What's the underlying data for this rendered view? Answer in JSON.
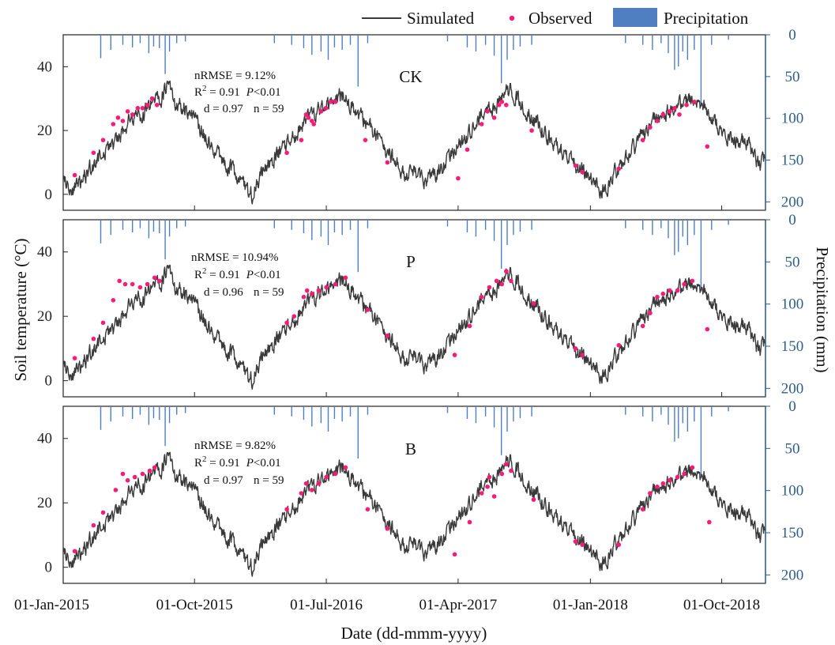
{
  "chart_data": {
    "type": "line",
    "xlabel": "Date (dd-mmm-yyyy)",
    "ylabel_left": "Soil temperature (°C)",
    "ylabel_right": "Precipitation (mm)",
    "x_ticks": [
      "01-Jan-2015",
      "01-Oct-2015",
      "01-Jul-2016",
      "01-Apr-2017",
      "01-Jan-2018",
      "01-Oct-2018"
    ],
    "xlim": [
      "2015-01-01",
      "2018-12-31"
    ],
    "ylim_left": [
      -5,
      50
    ],
    "left_ticks": [
      0,
      20,
      40
    ],
    "ylim_right": [
      210,
      0
    ],
    "right_ticks": [
      0,
      50,
      100,
      150,
      200
    ],
    "right_axis_reversed": true,
    "legend": {
      "position": "top-right",
      "entries": [
        "Simulated",
        "Observed",
        "Precipitation"
      ]
    },
    "colors": {
      "simulated": "#3a3a3a",
      "observed": "#ff1a75",
      "precipitation": "#4f7fc0",
      "right_axis": "#2e5c8a"
    },
    "precipitation": {
      "name": "Precipitation",
      "unit": "mm",
      "events": [
        [
          "2015-03-20",
          28
        ],
        [
          "2015-04-10",
          18
        ],
        [
          "2015-05-05",
          12
        ],
        [
          "2015-05-25",
          15
        ],
        [
          "2015-06-10",
          10
        ],
        [
          "2015-06-28",
          22
        ],
        [
          "2015-07-08",
          14
        ],
        [
          "2015-07-20",
          16
        ],
        [
          "2015-08-01",
          47
        ],
        [
          "2015-08-10",
          20
        ],
        [
          "2015-08-25",
          10
        ],
        [
          "2015-09-12",
          8
        ],
        [
          "2016-03-15",
          10
        ],
        [
          "2016-04-20",
          12
        ],
        [
          "2016-05-15",
          16
        ],
        [
          "2016-06-01",
          24
        ],
        [
          "2016-06-20",
          20
        ],
        [
          "2016-07-05",
          30
        ],
        [
          "2016-07-18",
          15
        ],
        [
          "2016-08-03",
          18
        ],
        [
          "2016-08-20",
          12
        ],
        [
          "2016-09-05",
          62
        ],
        [
          "2016-09-25",
          10
        ],
        [
          "2017-03-10",
          8
        ],
        [
          "2017-04-20",
          15
        ],
        [
          "2017-05-08",
          20
        ],
        [
          "2017-05-28",
          12
        ],
        [
          "2017-06-15",
          25
        ],
        [
          "2017-06-30",
          58
        ],
        [
          "2017-07-12",
          30
        ],
        [
          "2017-07-25",
          18
        ],
        [
          "2017-08-08",
          14
        ],
        [
          "2017-09-01",
          12
        ],
        [
          "2018-03-15",
          10
        ],
        [
          "2018-04-20",
          12
        ],
        [
          "2018-05-10",
          18
        ],
        [
          "2018-05-28",
          10
        ],
        [
          "2018-06-12",
          22
        ],
        [
          "2018-06-25",
          42
        ],
        [
          "2018-07-03",
          38
        ],
        [
          "2018-07-12",
          20
        ],
        [
          "2018-07-22",
          30
        ],
        [
          "2018-08-05",
          18
        ],
        [
          "2018-08-19",
          85
        ],
        [
          "2018-09-10",
          12
        ],
        [
          "2018-10-15",
          6
        ]
      ]
    },
    "simulated_profile": {
      "name": "Simulated",
      "keypoints": [
        [
          "2015-01-01",
          6
        ],
        [
          "2015-01-20",
          1
        ],
        [
          "2015-02-20",
          7
        ],
        [
          "2015-03-20",
          12
        ],
        [
          "2015-04-20",
          17
        ],
        [
          "2015-05-20",
          23
        ],
        [
          "2015-06-20",
          26
        ],
        [
          "2015-07-20",
          30
        ],
        [
          "2015-08-05",
          33
        ],
        [
          "2015-08-20",
          29
        ],
        [
          "2015-09-20",
          26
        ],
        [
          "2015-10-20",
          19
        ],
        [
          "2015-11-20",
          12
        ],
        [
          "2015-12-20",
          7
        ],
        [
          "2016-01-15",
          2
        ],
        [
          "2016-01-28",
          0
        ],
        [
          "2016-02-15",
          6
        ],
        [
          "2016-03-20",
          12
        ],
        [
          "2016-04-20",
          17
        ],
        [
          "2016-05-20",
          23
        ],
        [
          "2016-06-20",
          27
        ],
        [
          "2016-07-20",
          29
        ],
        [
          "2016-08-05",
          31
        ],
        [
          "2016-08-25",
          27
        ],
        [
          "2016-09-20",
          22
        ],
        [
          "2016-10-20",
          17
        ],
        [
          "2016-11-20",
          10
        ],
        [
          "2016-12-20",
          6
        ],
        [
          "2017-01-25",
          5
        ],
        [
          "2017-02-20",
          7
        ],
        [
          "2017-03-20",
          13
        ],
        [
          "2017-04-20",
          18
        ],
        [
          "2017-05-20",
          24
        ],
        [
          "2017-06-20",
          28
        ],
        [
          "2017-07-10",
          33
        ],
        [
          "2017-07-30",
          31
        ],
        [
          "2017-08-20",
          26
        ],
        [
          "2017-09-20",
          21
        ],
        [
          "2017-10-20",
          15
        ],
        [
          "2017-11-20",
          10
        ],
        [
          "2017-12-20",
          7
        ],
        [
          "2018-01-20",
          2
        ],
        [
          "2018-02-01",
          0
        ],
        [
          "2018-02-20",
          6
        ],
        [
          "2018-03-20",
          12
        ],
        [
          "2018-04-20",
          19
        ],
        [
          "2018-05-20",
          24
        ],
        [
          "2018-06-20",
          27
        ],
        [
          "2018-07-20",
          29
        ],
        [
          "2018-08-05",
          30
        ],
        [
          "2018-08-25",
          28
        ],
        [
          "2018-09-20",
          22
        ],
        [
          "2018-10-20",
          17
        ],
        [
          "2018-11-20",
          16
        ],
        [
          "2018-12-20",
          9
        ],
        [
          "2018-12-31",
          11
        ]
      ]
    },
    "panels": [
      {
        "label": "CK",
        "stats": {
          "nrmse": "nRMSE = 9.12%",
          "r2_prefix": "R",
          "r2_sup": "2",
          "r2_value": " = 0.91",
          "p_letter": "P",
          "p_value": "<0.01",
          "d": "d = 0.97",
          "n": "n = 59"
        },
        "observed": [
          [
            "2015-01-25",
            6
          ],
          [
            "2015-03-05",
            13
          ],
          [
            "2015-03-25",
            17
          ],
          [
            "2015-04-15",
            22
          ],
          [
            "2015-04-25",
            24
          ],
          [
            "2015-05-05",
            23
          ],
          [
            "2015-05-15",
            26
          ],
          [
            "2015-05-25",
            25
          ],
          [
            "2015-06-05",
            27
          ],
          [
            "2015-06-15",
            27
          ],
          [
            "2015-06-25",
            28
          ],
          [
            "2015-07-05",
            30
          ],
          [
            "2015-07-15",
            28
          ],
          [
            "2016-04-10",
            13
          ],
          [
            "2016-05-10",
            17
          ],
          [
            "2016-05-20",
            25
          ],
          [
            "2016-05-25",
            24
          ],
          [
            "2016-06-01",
            23
          ],
          [
            "2016-06-05",
            22
          ],
          [
            "2016-06-20",
            26
          ],
          [
            "2016-06-30",
            27
          ],
          [
            "2016-07-10",
            29
          ],
          [
            "2016-07-20",
            29
          ],
          [
            "2016-09-20",
            17
          ],
          [
            "2016-11-05",
            10
          ],
          [
            "2017-04-01",
            5
          ],
          [
            "2017-04-20",
            14
          ],
          [
            "2017-05-20",
            22
          ],
          [
            "2017-06-01",
            26
          ],
          [
            "2017-06-15",
            24
          ],
          [
            "2017-06-25",
            28
          ],
          [
            "2017-07-01",
            29
          ],
          [
            "2017-07-10",
            28
          ],
          [
            "2017-09-01",
            20
          ],
          [
            "2017-12-01",
            9
          ],
          [
            "2017-12-15",
            7
          ],
          [
            "2018-03-01",
            8
          ],
          [
            "2018-04-20",
            17
          ],
          [
            "2018-05-05",
            21
          ],
          [
            "2018-05-20",
            23
          ],
          [
            "2018-06-01",
            25
          ],
          [
            "2018-06-15",
            26
          ],
          [
            "2018-06-25",
            27
          ],
          [
            "2018-07-05",
            25
          ],
          [
            "2018-07-20",
            28
          ],
          [
            "2018-08-05",
            29
          ],
          [
            "2018-09-01",
            15
          ]
        ]
      },
      {
        "label": "P",
        "stats": {
          "nrmse": "nRMSE = 10.94%",
          "r2_prefix": "R",
          "r2_sup": "2",
          "r2_value": " = 0.91",
          "p_letter": "P",
          "p_value": "<0.01",
          "d": "d = 0.96",
          "n": "n = 59"
        },
        "observed": [
          [
            "2015-01-25",
            7
          ],
          [
            "2015-03-05",
            13
          ],
          [
            "2015-03-25",
            18
          ],
          [
            "2015-04-15",
            25
          ],
          [
            "2015-04-28",
            31
          ],
          [
            "2015-05-10",
            30
          ],
          [
            "2015-05-25",
            30
          ],
          [
            "2015-06-10",
            29
          ],
          [
            "2015-06-25",
            30
          ],
          [
            "2015-07-10",
            32
          ],
          [
            "2015-07-20",
            31
          ],
          [
            "2016-04-10",
            18
          ],
          [
            "2016-04-25",
            20
          ],
          [
            "2016-05-15",
            26
          ],
          [
            "2016-05-22",
            28
          ],
          [
            "2016-06-01",
            27
          ],
          [
            "2016-06-15",
            28
          ],
          [
            "2016-07-01",
            29
          ],
          [
            "2016-07-20",
            30
          ],
          [
            "2016-08-10",
            32
          ],
          [
            "2016-09-25",
            22
          ],
          [
            "2016-11-05",
            14
          ],
          [
            "2017-03-25",
            8
          ],
          [
            "2017-04-25",
            17
          ],
          [
            "2017-05-20",
            26
          ],
          [
            "2017-06-05",
            29
          ],
          [
            "2017-06-20",
            31
          ],
          [
            "2017-07-01",
            30
          ],
          [
            "2017-07-10",
            34
          ],
          [
            "2017-07-20",
            31
          ],
          [
            "2017-09-05",
            24
          ],
          [
            "2017-12-01",
            10
          ],
          [
            "2017-12-15",
            8
          ],
          [
            "2018-03-01",
            11
          ],
          [
            "2018-04-20",
            17
          ],
          [
            "2018-05-05",
            21
          ],
          [
            "2018-05-20",
            26
          ],
          [
            "2018-06-01",
            27
          ],
          [
            "2018-06-15",
            28
          ],
          [
            "2018-07-01",
            28
          ],
          [
            "2018-07-15",
            30
          ],
          [
            "2018-08-01",
            31
          ],
          [
            "2018-09-01",
            16
          ]
        ]
      },
      {
        "label": "B",
        "stats": {
          "nrmse": "nRMSE = 9.82%",
          "r2_prefix": "R",
          "r2_sup": "2",
          "r2_value": " = 0.91",
          "p_letter": "P",
          "p_value": "<0.01",
          "d": "d = 0.97",
          "n": "n = 59"
        },
        "observed": [
          [
            "2015-01-25",
            5
          ],
          [
            "2015-03-05",
            13
          ],
          [
            "2015-03-25",
            17
          ],
          [
            "2015-04-20",
            24
          ],
          [
            "2015-05-05",
            29
          ],
          [
            "2015-05-15",
            27
          ],
          [
            "2015-05-30",
            28
          ],
          [
            "2015-06-15",
            29
          ],
          [
            "2015-06-30",
            30
          ],
          [
            "2015-07-10",
            31
          ],
          [
            "2016-04-10",
            18
          ],
          [
            "2016-05-10",
            23
          ],
          [
            "2016-05-20",
            26
          ],
          [
            "2016-06-01",
            24
          ],
          [
            "2016-06-15",
            26
          ],
          [
            "2016-07-01",
            28
          ],
          [
            "2016-07-20",
            29
          ],
          [
            "2016-08-10",
            31
          ],
          [
            "2016-09-25",
            18
          ],
          [
            "2016-11-05",
            12
          ],
          [
            "2017-03-25",
            4
          ],
          [
            "2017-04-25",
            14
          ],
          [
            "2017-05-20",
            23
          ],
          [
            "2017-06-01",
            25
          ],
          [
            "2017-06-05",
            28
          ],
          [
            "2017-06-15",
            22
          ],
          [
            "2017-07-01",
            29
          ],
          [
            "2017-07-10",
            32
          ],
          [
            "2017-07-20",
            30
          ],
          [
            "2017-09-05",
            21
          ],
          [
            "2017-12-01",
            8
          ],
          [
            "2017-12-15",
            7
          ],
          [
            "2018-03-01",
            7
          ],
          [
            "2018-04-20",
            18
          ],
          [
            "2018-05-05",
            23
          ],
          [
            "2018-05-20",
            25
          ],
          [
            "2018-06-01",
            26
          ],
          [
            "2018-06-15",
            27
          ],
          [
            "2018-07-01",
            28
          ],
          [
            "2018-07-15",
            29
          ],
          [
            "2018-08-01",
            31
          ],
          [
            "2018-09-05",
            14
          ]
        ]
      }
    ]
  }
}
